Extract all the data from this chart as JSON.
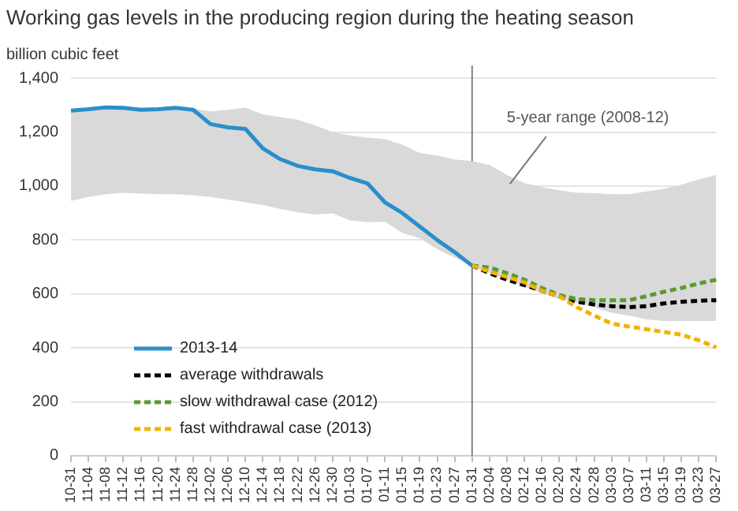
{
  "chart_data": {
    "type": "line",
    "title": "Working gas levels in the producing region during the heating season",
    "ylabel": "billion cubic feet",
    "categories": [
      "10-31",
      "11-04",
      "11-08",
      "11-12",
      "11-16",
      "11-20",
      "11-24",
      "11-28",
      "12-02",
      "12-06",
      "12-10",
      "12-14",
      "12-18",
      "12-22",
      "12-26",
      "12-30",
      "01-03",
      "01-07",
      "01-11",
      "01-15",
      "01-19",
      "01-23",
      "01-27",
      "01-31",
      "02-04",
      "02-08",
      "02-12",
      "02-16",
      "02-20",
      "02-24",
      "02-28",
      "03-03",
      "03-07",
      "03-11",
      "03-15",
      "03-19",
      "03-23",
      "03-27"
    ],
    "series": [
      {
        "type": "area",
        "color": "#d9d9d9",
        "values": [
          null,
          null,
          null,
          null,
          null,
          null,
          null,
          null,
          null,
          null,
          null,
          null,
          null,
          null,
          null,
          null,
          null,
          null,
          null,
          null,
          null,
          null,
          null,
          null,
          null,
          null,
          null,
          null,
          null,
          null,
          null,
          null,
          null,
          null,
          null,
          null,
          null,
          null
        ],
        "lower": [
          945,
          960,
          970,
          975,
          972,
          970,
          970,
          966,
          960,
          950,
          940,
          930,
          915,
          903,
          895,
          899,
          873,
          866,
          868,
          827,
          806,
          765,
          735,
          704,
          677,
          653,
          628,
          602,
          581,
          567,
          551,
          530,
          520,
          506,
          500,
          500,
          500,
          500
        ],
        "upper": [
          1285,
          1290,
          1295,
          1295,
          1290,
          1290,
          1290,
          1287,
          1277,
          1283,
          1291,
          1266,
          1256,
          1246,
          1225,
          1200,
          1188,
          1180,
          1174,
          1154,
          1123,
          1113,
          1099,
          1093,
          1078,
          1042,
          1011,
          996,
          984,
          976,
          974,
          970,
          970,
          980,
          990,
          1005,
          1025,
          1042
        ]
      },
      {
        "name": "2013-14",
        "color": "#2a8fcb",
        "line_style": "solid",
        "values": [
          1280,
          1285,
          1292,
          1290,
          1283,
          1285,
          1290,
          1283,
          1230,
          1218,
          1212,
          1140,
          1100,
          1075,
          1062,
          1055,
          1030,
          1010,
          940,
          900,
          850,
          800,
          755,
          705,
          null,
          null,
          null,
          null,
          null,
          null,
          null,
          null,
          null,
          null,
          null,
          null,
          null,
          null
        ]
      },
      {
        "name": "average withdrawals",
        "color": "#000000",
        "line_style": "dashed",
        "values": [
          null,
          null,
          null,
          null,
          null,
          null,
          null,
          null,
          null,
          null,
          null,
          null,
          null,
          null,
          null,
          null,
          null,
          null,
          null,
          null,
          null,
          null,
          null,
          705,
          677,
          653,
          633,
          612,
          592,
          571,
          561,
          555,
          551,
          555,
          565,
          571,
          575,
          577
        ]
      },
      {
        "name": "slow withdrawal case (2012)",
        "color": "#5a9a32",
        "line_style": "dashed",
        "values": [
          null,
          null,
          null,
          null,
          null,
          null,
          null,
          null,
          null,
          null,
          null,
          null,
          null,
          null,
          null,
          null,
          null,
          null,
          null,
          null,
          null,
          null,
          null,
          705,
          698,
          677,
          653,
          622,
          596,
          581,
          577,
          577,
          577,
          592,
          608,
          622,
          639,
          653
        ]
      },
      {
        "name": "fast withdrawal case (2013)",
        "color": "#f0b400",
        "line_style": "dashed",
        "values": [
          null,
          null,
          null,
          null,
          null,
          null,
          null,
          null,
          null,
          null,
          null,
          null,
          null,
          null,
          null,
          null,
          null,
          null,
          null,
          null,
          null,
          null,
          null,
          705,
          683,
          663,
          643,
          612,
          592,
          551,
          520,
          490,
          479,
          469,
          459,
          449,
          428,
          402
        ]
      }
    ],
    "ylim": [
      0,
      1400
    ],
    "yticks": [
      0,
      200,
      400,
      600,
      800,
      {
        "value": 1000,
        "label": "1,000"
      },
      {
        "value": 1200,
        "label": "1,200"
      },
      {
        "value": 1400,
        "label": "1,400"
      }
    ],
    "ref_lines": [
      {
        "axis": "x",
        "value": "01-31",
        "color": "#808080"
      }
    ],
    "annotations": [
      "5-year range (2008-12)"
    ],
    "grid": "y",
    "legend": "bottom left",
    "marker": "none"
  }
}
